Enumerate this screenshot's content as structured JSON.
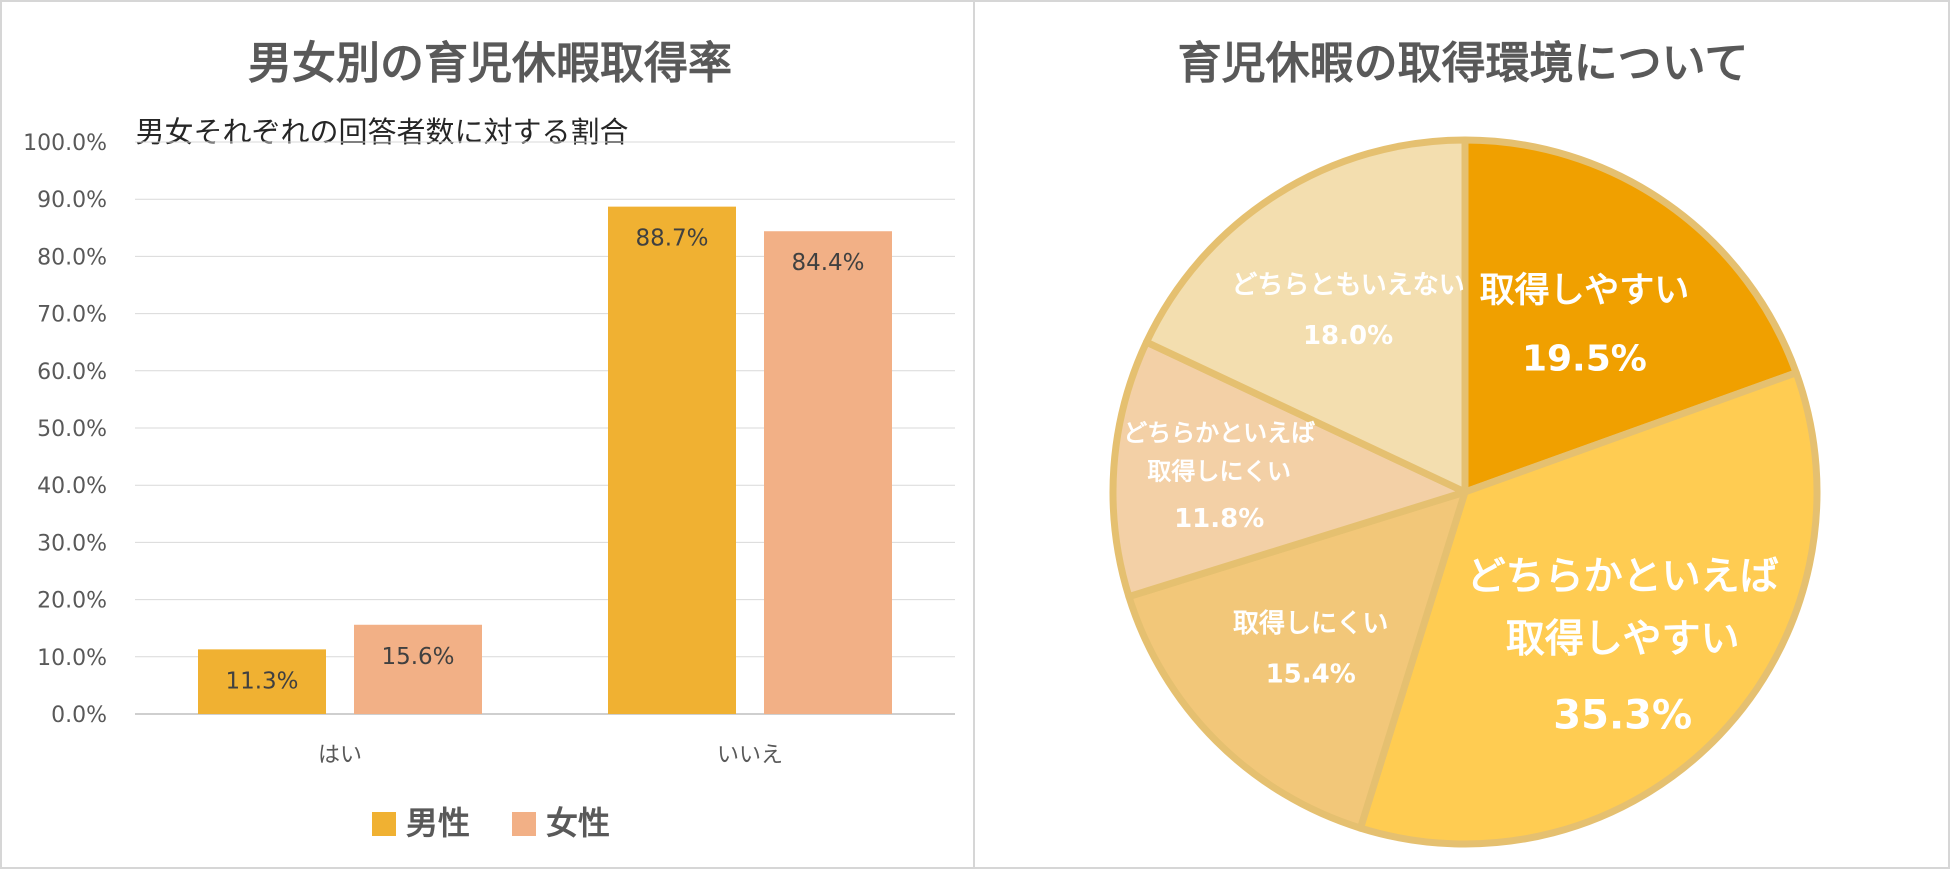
{
  "chart_data": [
    {
      "type": "bar",
      "title": "男女別の育児休暇取得率",
      "subtitle": "男女それぞれの回答者数に対する割合",
      "categories": [
        "はい",
        "いいえ"
      ],
      "series": [
        {
          "name": "男性",
          "values": [
            11.3,
            88.7
          ],
          "labels": [
            "11.3%",
            "88.7%"
          ],
          "color": "#F0B132"
        },
        {
          "name": "女性",
          "values": [
            15.6,
            84.4
          ],
          "labels": [
            "15.6%",
            "84.4%"
          ],
          "color": "#F2B086"
        }
      ],
      "ylim": [
        0,
        100
      ],
      "yticks": [
        "0.0%",
        "10.0%",
        "20.0%",
        "30.0%",
        "40.0%",
        "50.0%",
        "60.0%",
        "70.0%",
        "80.0%",
        "90.0%",
        "100.0%"
      ],
      "grid": true,
      "legend": "bottom"
    },
    {
      "type": "pie",
      "title": "育児休暇の取得環境について",
      "slices": [
        {
          "label_lines": [
            "取得しやすい"
          ],
          "value": 19.5,
          "value_label": "19.5%",
          "color": "#F0A000"
        },
        {
          "label_lines": [
            "どちらかといえば",
            "取得しやすい"
          ],
          "value": 35.3,
          "value_label": "35.3%",
          "color": "#FFCC52"
        },
        {
          "label_lines": [
            "取得しにくい"
          ],
          "value": 15.4,
          "value_label": "15.4%",
          "color": "#F2C779"
        },
        {
          "label_lines": [
            "どちらかといえば",
            "取得しにくい"
          ],
          "value": 11.8,
          "value_label": "11.8%",
          "color": "#F3D0A6"
        },
        {
          "label_lines": [
            "どちらともいえない"
          ],
          "value": 18.0,
          "value_label": "18.0%",
          "color": "#F3DEAF"
        }
      ]
    }
  ]
}
